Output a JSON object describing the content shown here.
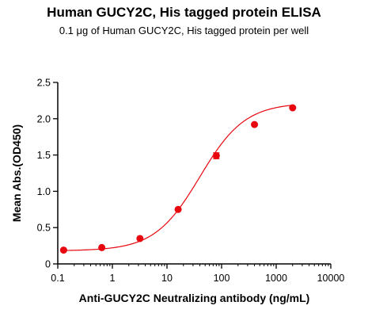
{
  "chart_data": {
    "type": "scatter",
    "title": "Human GUCY2C, His tagged protein ELISA",
    "subtitle": "0.1 μg of Human GUCY2C, His tagged protein per well",
    "xlabel": "Anti-GUCY2C Neutralizing antibody (ng/mL)",
    "ylabel": "Mean Abs.(OD450)",
    "xscale": "log",
    "xlim": [
      0.1,
      10000
    ],
    "ylim": [
      0,
      2.5
    ],
    "x_ticks": [
      0.1,
      1,
      10,
      100,
      1000,
      10000
    ],
    "x_tick_labels": [
      "0.1",
      "1",
      "10",
      "100",
      "1000",
      "10000"
    ],
    "y_ticks": [
      0,
      0.5,
      1.0,
      1.5,
      2.0,
      2.5
    ],
    "y_tick_labels": [
      "0",
      "0.5",
      "1.0",
      "1.5",
      "2.0",
      "2.5"
    ],
    "grid": false,
    "series": [
      {
        "x": [
          0.128,
          0.64,
          3.2,
          16,
          80,
          400,
          2000
        ],
        "y": [
          0.19,
          0.225,
          0.35,
          0.75,
          1.49,
          1.92,
          2.15
        ],
        "error": [
          0,
          0,
          0,
          0,
          0.04,
          0,
          0
        ],
        "fit": "4PL"
      }
    ],
    "colors": {
      "series": "#e8070f",
      "axis": "#000000"
    }
  }
}
